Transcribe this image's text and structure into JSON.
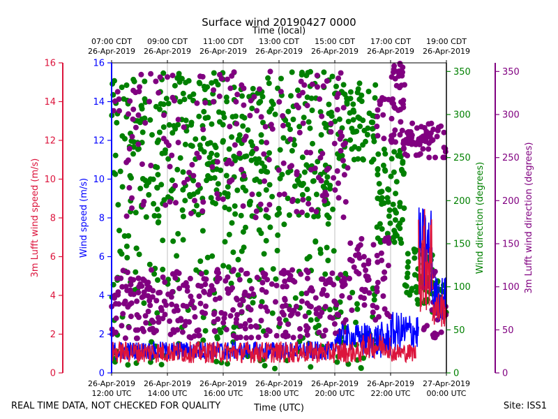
{
  "chart_data": {
    "type": "scatter",
    "title": "Surface wind 20190427 0000",
    "top_axis_label": "Time (local)",
    "bottom_axis_label": "Time (UTC)",
    "x_ticks_utc": [
      {
        "hour": 12,
        "date": "26-Apr-2019",
        "time": "12:00 UTC"
      },
      {
        "hour": 14,
        "date": "26-Apr-2019",
        "time": "14:00 UTC"
      },
      {
        "hour": 16,
        "date": "26-Apr-2019",
        "time": "16:00 UTC"
      },
      {
        "hour": 18,
        "date": "26-Apr-2019",
        "time": "18:00 UTC"
      },
      {
        "hour": 20,
        "date": "26-Apr-2019",
        "time": "20:00 UTC"
      },
      {
        "hour": 22,
        "date": "26-Apr-2019",
        "time": "22:00 UTC"
      },
      {
        "hour": 24,
        "date": "27-Apr-2019",
        "time": "00:00 UTC"
      }
    ],
    "x_ticks_local": [
      {
        "hour": 12,
        "time": "07:00 CDT",
        "date": "26-Apr-2019"
      },
      {
        "hour": 14,
        "time": "09:00 CDT",
        "date": "26-Apr-2019"
      },
      {
        "hour": 16,
        "time": "11:00 CDT",
        "date": "26-Apr-2019"
      },
      {
        "hour": 18,
        "time": "13:00 CDT",
        "date": "26-Apr-2019"
      },
      {
        "hour": 20,
        "time": "15:00 CDT",
        "date": "26-Apr-2019"
      },
      {
        "hour": 22,
        "time": "17:00 CDT",
        "date": "26-Apr-2019"
      },
      {
        "hour": 24,
        "time": "19:00 CDT",
        "date": "26-Apr-2019"
      }
    ],
    "xlim_hours_utc": [
      12,
      24
    ],
    "axes": {
      "wind_speed": {
        "label": "Wind speed (m/s)",
        "ylim": [
          0,
          16
        ],
        "ticks": [
          "0",
          "2",
          "4",
          "6",
          "8",
          "10",
          "12",
          "14",
          "16"
        ],
        "color": "#0000ff"
      },
      "lufft_speed": {
        "label": "3m Lufft wind speed (m/s)",
        "ylim": [
          0,
          16
        ],
        "ticks": [
          "0",
          "2",
          "4",
          "6",
          "8",
          "10",
          "12",
          "14",
          "16"
        ],
        "color": "#dc143c"
      },
      "wind_dir": {
        "label": "Wind direction (degrees)",
        "ylim": [
          0,
          360
        ],
        "ticks": [
          "0",
          "50",
          "100",
          "150",
          "200",
          "250",
          "300",
          "350"
        ],
        "color": "#008000"
      },
      "lufft_dir": {
        "label": "3m Lufft wind direction (degrees)",
        "ylim": [
          0,
          360
        ],
        "ticks": [
          "0",
          "50",
          "100",
          "150",
          "200",
          "250",
          "300",
          "350"
        ],
        "color": "#800080"
      }
    },
    "series": [
      {
        "name": "Wind speed",
        "axis": "wind_speed",
        "style": "line",
        "color": "#0000ff",
        "segments": [
          {
            "t": [
              12.0,
              20.0
            ],
            "base": 1.0,
            "amp": 0.6
          },
          {
            "t": [
              20.0,
              21.0
            ],
            "base": 1.6,
            "amp": 0.9
          },
          {
            "t": [
              21.0,
              22.0
            ],
            "base": 1.4,
            "amp": 1.2
          },
          {
            "t": [
              22.0,
              23.0
            ],
            "base": 1.8,
            "amp": 1.3
          },
          {
            "t": [
              23.0,
              23.5
            ],
            "base": 5.5,
            "amp": 3.0
          },
          {
            "t": [
              23.5,
              24.0
            ],
            "base": 3.5,
            "amp": 1.5
          }
        ]
      },
      {
        "name": "3m Lufft wind speed",
        "axis": "lufft_speed",
        "style": "line",
        "color": "#dc143c",
        "segments": [
          {
            "t": [
              12.0,
              21.0
            ],
            "base": 0.9,
            "amp": 0.7
          },
          {
            "t": [
              21.0,
              22.0
            ],
            "base": 1.2,
            "amp": 0.8
          },
          {
            "t": [
              22.0,
              22.9
            ],
            "base": 0.9,
            "amp": 0.6
          },
          {
            "t": [
              23.0,
              23.5
            ],
            "base": 5.0,
            "amp": 3.5
          },
          {
            "t": [
              23.5,
              24.0
            ],
            "base": 3.0,
            "amp": 1.2
          }
        ]
      },
      {
        "name": "Wind direction",
        "axis": "wind_dir",
        "style": "dots",
        "color": "#008000",
        "clusters": [
          {
            "t": [
              12.0,
              20.0
            ],
            "ylo": 180,
            "yhi": 350,
            "n": 420
          },
          {
            "t": [
              12.0,
              20.0
            ],
            "ylo": 5,
            "yhi": 180,
            "n": 170
          },
          {
            "t": [
              20.0,
              21.5
            ],
            "ylo": 240,
            "yhi": 340,
            "n": 70
          },
          {
            "t": [
              20.0,
              21.5
            ],
            "ylo": 5,
            "yhi": 120,
            "n": 35
          },
          {
            "t": [
              21.5,
              22.5
            ],
            "ylo": 150,
            "yhi": 260,
            "n": 70
          },
          {
            "t": [
              22.5,
              23.5
            ],
            "ylo": 80,
            "yhi": 150,
            "n": 60
          },
          {
            "t": [
              23.5,
              24.0
            ],
            "ylo": 70,
            "yhi": 110,
            "n": 25
          }
        ]
      },
      {
        "name": "3m Lufft wind direction",
        "axis": "lufft_dir",
        "style": "dots",
        "color": "#800080",
        "clusters": [
          {
            "t": [
              12.0,
              20.5
            ],
            "ylo": 40,
            "yhi": 120,
            "n": 330
          },
          {
            "t": [
              12.0,
              20.5
            ],
            "ylo": 180,
            "yhi": 350,
            "n": 200
          },
          {
            "t": [
              20.5,
              22.0
            ],
            "ylo": 60,
            "yhi": 160,
            "n": 60
          },
          {
            "t": [
              21.5,
              22.5
            ],
            "ylo": 260,
            "yhi": 320,
            "n": 40
          },
          {
            "t": [
              22.0,
              22.5
            ],
            "ylo": 330,
            "yhi": 360,
            "n": 20
          },
          {
            "t": [
              22.5,
              24.0
            ],
            "ylo": 250,
            "yhi": 290,
            "n": 60
          },
          {
            "t": [
              23.0,
              24.0
            ],
            "ylo": 40,
            "yhi": 120,
            "n": 30
          }
        ]
      }
    ]
  },
  "footer": {
    "left_note": "REAL TIME DATA, NOT CHECKED FOR QUALITY",
    "site": "Site: ISS1"
  }
}
